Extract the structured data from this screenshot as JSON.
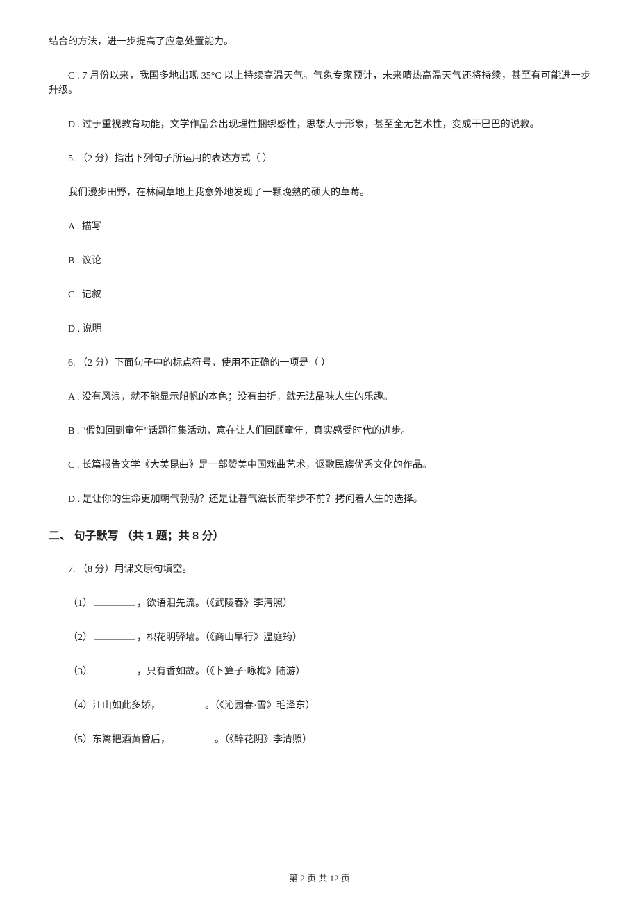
{
  "background_color": "#ffffff",
  "text_color": "#222222",
  "font_family_body": "SimSun",
  "font_family_heading": "SimHei",
  "font_size_body": 14,
  "font_size_heading": 16,
  "line_height": 1.5,
  "paragraph_spacing": 28,
  "content": {
    "continuation": "结合的方法，进一步提高了应急处置能力。",
    "q4_optC": "C . 7 月份以来，我国多地出现 35°C 以上持续高温天气。气象专家预计，未来晴热高温天气还将持续，甚至有可能进一步升级。",
    "q4_optD": "D . 过于重视教育功能，文学作品会出现理性捆绑感性，思想大于形象，甚至全无艺术性，变成干巴巴的说教。",
    "q5_stem": "5. （2 分）指出下列句子所运用的表达方式（    ）",
    "q5_body": "我们漫步田野，在林间草地上我意外地发现了一颗晚熟的硕大的草莓。",
    "q5_optA": "A . 描写",
    "q5_optB": "B . 议论",
    "q5_optC": "C . 记叙",
    "q5_optD": "D . 说明",
    "q6_stem": "6. （2 分）下面句子中的标点符号，使用不正确的一项是（    ）",
    "q6_optA": "A . 没有风浪，就不能显示船帆的本色；没有曲折，就无法品味人生的乐趣。",
    "q6_optB": "B . \"假如回到童年\"话题征集活动，意在让人们回顾童年，真实感受时代的进步。",
    "q6_optC": "C . 长篇报告文学《大美昆曲》是一部赞美中国戏曲艺术，讴歌民族优秀文化的作品。",
    "q6_optD": "D . 是让你的生命更加朝气勃勃？还是让暮气滋长而举步不前？拷问着人生的选择。",
    "sec2_heading": "二、 句子默写 （共 1 题；共 8 分）",
    "q7_stem": "7. （8 分）用课文原句填空。",
    "q7_1_after": "，欲语泪先流。（《武陵春》李清照）",
    "q7_1_prefix": "（1）",
    "q7_2_after": "，枳花明驿墙。（《商山早行》温庭筠）",
    "q7_2_prefix": "（2）",
    "q7_3_after": "，只有香如故。（《卜算子·咏梅》陆游）",
    "q7_3_prefix": "（3）",
    "q7_4_before": "（4）江山如此多娇，",
    "q7_4_after": "。（《沁园春·雪》毛泽东）",
    "q7_5_before": "（5）东篱把酒黄昏后，",
    "q7_5_after": "。（《醉花阴》李清照）"
  },
  "footer": "第 2 页 共 12 页"
}
